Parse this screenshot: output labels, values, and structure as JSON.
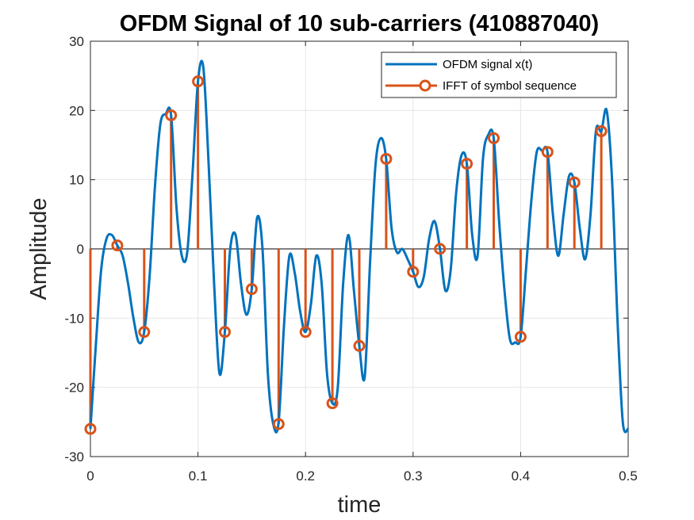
{
  "chart_data": {
    "type": "line",
    "title": "OFDM Signal of 10 sub-carriers (410887040)",
    "xlabel": "time",
    "ylabel": "Amplitude",
    "xlim": [
      0,
      0.5
    ],
    "ylim": [
      -30,
      30
    ],
    "xticks": [
      0,
      0.1,
      0.2,
      0.3,
      0.4,
      0.5
    ],
    "xtick_labels": [
      "0",
      "0.1",
      "0.2",
      "0.3",
      "0.4",
      "0.5"
    ],
    "yticks": [
      -30,
      -20,
      -10,
      0,
      10,
      20,
      30
    ],
    "ytick_labels": [
      "-30",
      "-20",
      "-10",
      "0",
      "10",
      "20",
      "30"
    ],
    "grid": true,
    "legend_position": "top-right",
    "colors": {
      "signal": "#0072BD",
      "stem": "#D95319",
      "grid": "#e6e6e6",
      "axis": "#262626"
    },
    "series": [
      {
        "name": "OFDM signal x(t)",
        "kind": "line",
        "x": [
          0,
          0.005,
          0.01,
          0.015,
          0.02,
          0.025,
          0.03,
          0.035,
          0.04,
          0.045,
          0.05,
          0.055,
          0.06,
          0.065,
          0.07,
          0.075,
          0.08,
          0.085,
          0.09,
          0.095,
          0.1,
          0.105,
          0.11,
          0.115,
          0.12,
          0.125,
          0.13,
          0.135,
          0.14,
          0.145,
          0.15,
          0.155,
          0.16,
          0.165,
          0.17,
          0.175,
          0.18,
          0.185,
          0.19,
          0.195,
          0.2,
          0.205,
          0.21,
          0.215,
          0.22,
          0.225,
          0.23,
          0.235,
          0.24,
          0.245,
          0.25,
          0.255,
          0.26,
          0.265,
          0.27,
          0.275,
          0.28,
          0.285,
          0.29,
          0.295,
          0.3,
          0.305,
          0.31,
          0.315,
          0.32,
          0.325,
          0.33,
          0.335,
          0.34,
          0.345,
          0.35,
          0.355,
          0.36,
          0.365,
          0.37,
          0.375,
          0.38,
          0.385,
          0.39,
          0.395,
          0.4,
          0.405,
          0.41,
          0.415,
          0.42,
          0.425,
          0.43,
          0.435,
          0.44,
          0.445,
          0.45,
          0.455,
          0.46,
          0.465,
          0.47,
          0.475,
          0.48,
          0.485,
          0.49,
          0.495,
          0.5
        ],
        "values": [
          -26,
          -14,
          -3,
          1.5,
          2,
          0.5,
          -1,
          -5,
          -10,
          -13.5,
          -12,
          -4,
          9,
          18,
          19.5,
          19.3,
          6,
          -1,
          -0.5,
          11,
          24.2,
          26.2,
          12,
          -5,
          -18,
          -12,
          0,
          2,
          -5,
          -9.5,
          -5.8,
          4.5,
          0,
          -18,
          -25.3,
          -25,
          -11,
          -1,
          -3.5,
          -9,
          -12,
          -8,
          -1,
          -5,
          -18,
          -22.3,
          -20,
          -5,
          2,
          -6,
          -14,
          -18.5,
          -2,
          12,
          16,
          13,
          3,
          -0.5,
          0,
          -1.5,
          -3.3,
          -5.5,
          -4,
          1.5,
          4,
          0,
          -6,
          -3,
          8,
          13.5,
          12.3,
          2,
          -1,
          13,
          16.5,
          16,
          4,
          -6,
          -13,
          -13.5,
          -12.7,
          -3,
          7,
          14,
          14.2,
          14,
          5,
          -1,
          5,
          10.5,
          9.6,
          3,
          -1.5,
          5,
          17,
          17,
          20,
          10,
          -10,
          -25,
          -26
        ]
      },
      {
        "name": "IFFT of symbol sequence",
        "kind": "stem",
        "x": [
          0,
          0.025,
          0.05,
          0.075,
          0.1,
          0.125,
          0.15,
          0.175,
          0.2,
          0.225,
          0.25,
          0.275,
          0.3,
          0.325,
          0.35,
          0.375,
          0.4,
          0.425,
          0.45,
          0.475
        ],
        "values": [
          -26,
          0.5,
          -12,
          19.3,
          24.2,
          -12,
          -5.8,
          -25.3,
          -12,
          -22.3,
          -14,
          13,
          -3.3,
          0,
          12.3,
          16,
          -12.7,
          14,
          9.6,
          17
        ]
      }
    ]
  }
}
